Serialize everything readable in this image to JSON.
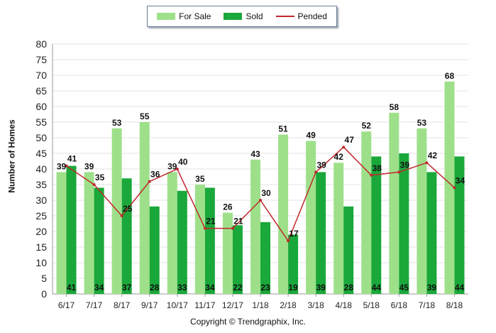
{
  "chart_data": {
    "type": "bar",
    "categories": [
      "6/17",
      "7/17",
      "8/17",
      "9/17",
      "10/17",
      "11/17",
      "12/17",
      "1/18",
      "2/18",
      "3/18",
      "4/18",
      "5/18",
      "6/18",
      "7/18",
      "8/18"
    ],
    "series": [
      {
        "name": "For Sale",
        "type": "bar",
        "color": "#9ee08a",
        "values": [
          39,
          39,
          53,
          55,
          39,
          35,
          26,
          43,
          51,
          49,
          42,
          52,
          58,
          53,
          68
        ]
      },
      {
        "name": "Sold",
        "type": "bar",
        "color": "#1aa83a",
        "values": [
          41,
          34,
          37,
          28,
          33,
          34,
          22,
          23,
          19,
          39,
          28,
          44,
          45,
          39,
          44
        ]
      },
      {
        "name": "Pended",
        "type": "line",
        "color": "#c0282d",
        "values": [
          41,
          35,
          25,
          36,
          40,
          21,
          21,
          30,
          17,
          39,
          47,
          38,
          39,
          42,
          34
        ]
      }
    ],
    "ylabel": "Number of Homes",
    "xlabel": "",
    "ylim": [
      0,
      80
    ],
    "yticks": [
      0,
      5,
      10,
      15,
      20,
      25,
      30,
      35,
      40,
      45,
      50,
      55,
      60,
      65,
      70,
      75,
      80
    ],
    "grid": true,
    "legend": "top-center"
  },
  "footer": {
    "copyright": "Copyright © Trendgraphix, Inc."
  }
}
